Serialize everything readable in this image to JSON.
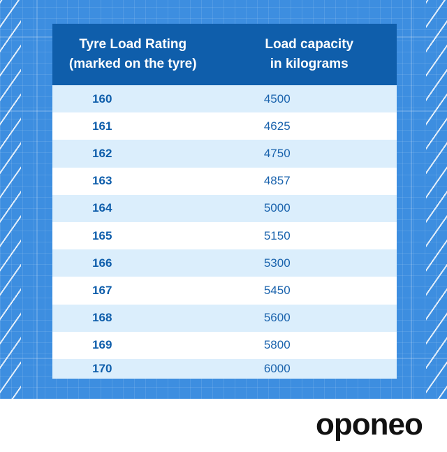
{
  "table": {
    "headers": [
      {
        "line1": "Tyre Load Rating",
        "line2": "(marked on the tyre)"
      },
      {
        "line1": "Load capacity",
        "line2": "in kilograms"
      }
    ],
    "rows": [
      {
        "rating": "160",
        "capacity": "4500"
      },
      {
        "rating": "161",
        "capacity": "4625"
      },
      {
        "rating": "162",
        "capacity": "4750"
      },
      {
        "rating": "163",
        "capacity": "4857"
      },
      {
        "rating": "164",
        "capacity": "5000"
      },
      {
        "rating": "165",
        "capacity": "5150"
      },
      {
        "rating": "166",
        "capacity": "5300"
      },
      {
        "rating": "167",
        "capacity": "5450"
      },
      {
        "rating": "168",
        "capacity": "5600"
      },
      {
        "rating": "169",
        "capacity": "5800"
      },
      {
        "rating": "170",
        "capacity": "6000"
      }
    ]
  },
  "brand": {
    "logo_text": "oponeo"
  },
  "colors": {
    "background_blue": "#3d8ee0",
    "header_blue": "#0f5eab",
    "stripe_light": "#dbeefc",
    "text_blue": "#1a63ad"
  }
}
